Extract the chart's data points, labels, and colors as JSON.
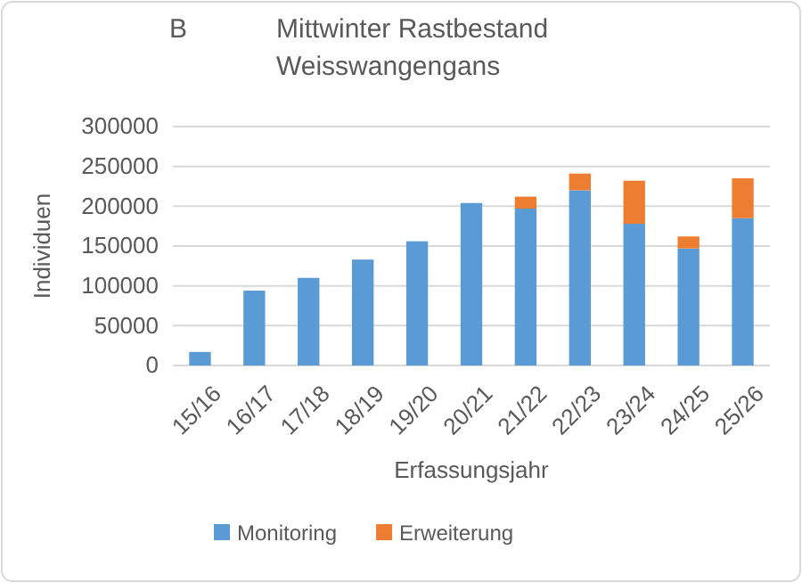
{
  "chart_data": {
    "type": "bar",
    "title": "Mittwinter Rastbestand Weisswangengans",
    "annotations": [
      "B"
    ],
    "xlabel": "Erfassungsjahr",
    "ylabel": "Individuen",
    "categories": [
      "15/16",
      "16/17",
      "17/18",
      "18/19",
      "19/20",
      "20/21",
      "21/22",
      "22/23",
      "23/24",
      "24/25",
      "25/26"
    ],
    "series": [
      {
        "name": "Monitoring",
        "color": "#5b9bd5",
        "values": [
          17000,
          94000,
          110000,
          133000,
          156000,
          204000,
          197000,
          220000,
          178000,
          147000,
          185000
        ]
      },
      {
        "name": "Erweiterung",
        "color": "#ed7d31",
        "values": [
          null,
          null,
          null,
          null,
          null,
          null,
          15000,
          21000,
          54000,
          15000,
          50000
        ]
      }
    ],
    "stacked": true,
    "ylim": [
      0,
      300000
    ],
    "yticks": [
      0,
      50000,
      100000,
      150000,
      200000,
      250000,
      300000
    ],
    "grid": "y",
    "legend": "bottom"
  }
}
